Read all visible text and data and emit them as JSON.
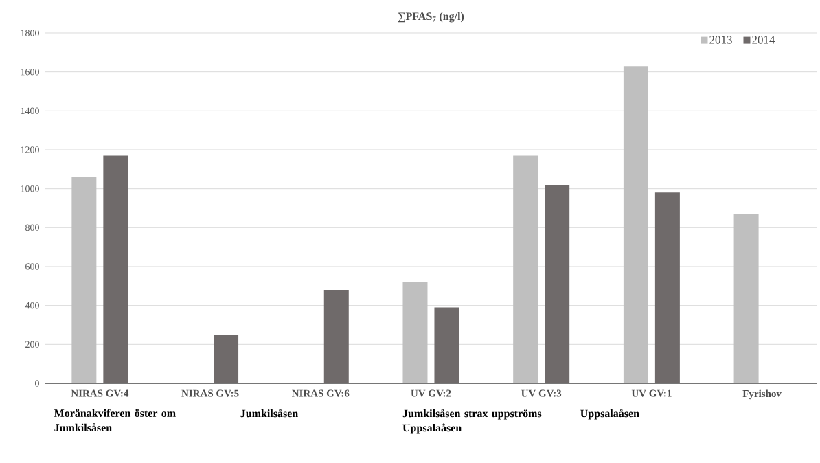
{
  "chart_data": {
    "type": "bar",
    "title": "∑PFAS$_{7}$ (ng/l)",
    "categories": [
      "NIRAS GV:4",
      "NIRAS GV:5",
      "NIRAS GV:6",
      "UV GV:2",
      "UV GV:3",
      "UV GV:1",
      "Fyrishov"
    ],
    "series": [
      {
        "name": "2013",
        "color": "#bfbfbf",
        "values": [
          1060,
          null,
          null,
          520,
          1170,
          1630,
          870
        ]
      },
      {
        "name": "2014",
        "color": "#6f6a6a",
        "values": [
          1170,
          250,
          480,
          390,
          1020,
          980,
          null
        ]
      }
    ],
    "ylim": [
      0,
      1800
    ],
    "yticks": [
      0,
      200,
      400,
      600,
      800,
      1000,
      1200,
      1400,
      1600,
      1800
    ],
    "grid": "y",
    "legend": "top right",
    "annotations": [
      "Moränakviferen öster om Jumkilsåsen",
      "Jumkilsåsen",
      "Jumkilsåsen strax uppströms Uppsalaåsen",
      "Uppsalaåsen"
    ]
  }
}
